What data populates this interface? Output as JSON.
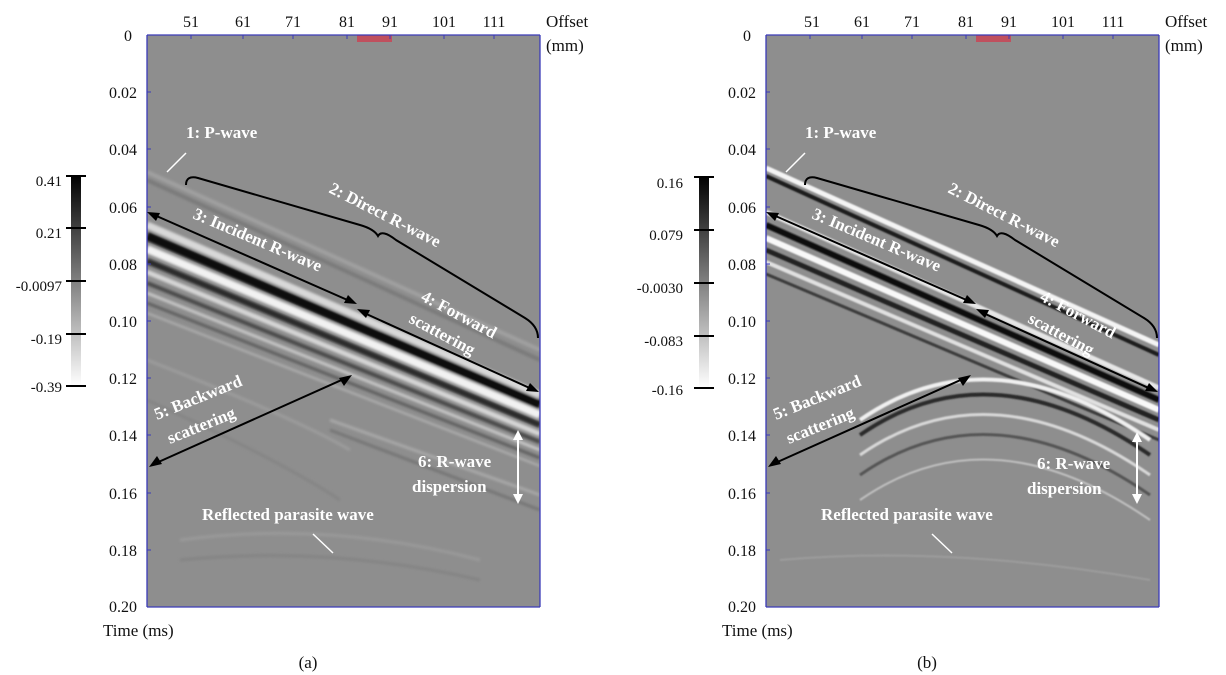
{
  "figure": {
    "panels": [
      {
        "id": "a",
        "caption": "(a)",
        "x_axis": {
          "title_line1": "Offset",
          "title_line2": "(mm)",
          "ticks": [
            "51",
            "61",
            "71",
            "81",
            "91",
            "101",
            "111"
          ]
        },
        "y_axis": {
          "title": "Time (ms)",
          "ticks": [
            "0",
            "0.02",
            "0.04",
            "0.06",
            "0.08",
            "0.10",
            "0.12",
            "0.14",
            "0.16",
            "0.18",
            "0.20"
          ]
        },
        "colorbar": {
          "labels": [
            "0.41",
            "0.21",
            "-0.0097",
            "-0.19",
            "-0.39"
          ]
        },
        "annotations": {
          "p_wave": "1: P-wave",
          "direct_r_wave": "2: Direct R-wave",
          "incident_r_wave": "3: Incident R-wave",
          "forward_1": "4: Forward",
          "forward_2": "scattering",
          "backward_1": "5: Backward",
          "backward_2": "scattering",
          "dispersion_1": "6: R-wave",
          "dispersion_2": "dispersion",
          "reflected": "Reflected parasite wave"
        }
      },
      {
        "id": "b",
        "caption": "(b)",
        "x_axis": {
          "title_line1": "Offset",
          "title_line2": "(mm)",
          "ticks": [
            "51",
            "61",
            "71",
            "81",
            "91",
            "101",
            "111"
          ]
        },
        "y_axis": {
          "title": "Time (ms)",
          "ticks": [
            "0",
            "0.02",
            "0.04",
            "0.06",
            "0.08",
            "0.10",
            "0.12",
            "0.14",
            "0.16",
            "0.18",
            "0.20"
          ]
        },
        "colorbar": {
          "labels": [
            "0.16",
            "0.079",
            "-0.0030",
            "-0.083",
            "-0.16"
          ]
        },
        "annotations": {
          "p_wave": "1: P-wave",
          "direct_r_wave": "2: Direct R-wave",
          "incident_r_wave": "3: Incident R-wave",
          "forward_1": "4: Forward",
          "forward_2": "scattering",
          "backward_1": "5: Backward",
          "backward_2": "scattering",
          "dispersion_1": "6: R-wave",
          "dispersion_2": "dispersion",
          "reflected": "Reflected parasite wave"
        }
      }
    ],
    "colors": {
      "defect_marker": "#c0505e",
      "axis_frame": "#3b3bb8",
      "field_gray": "#8e8e8e"
    }
  }
}
